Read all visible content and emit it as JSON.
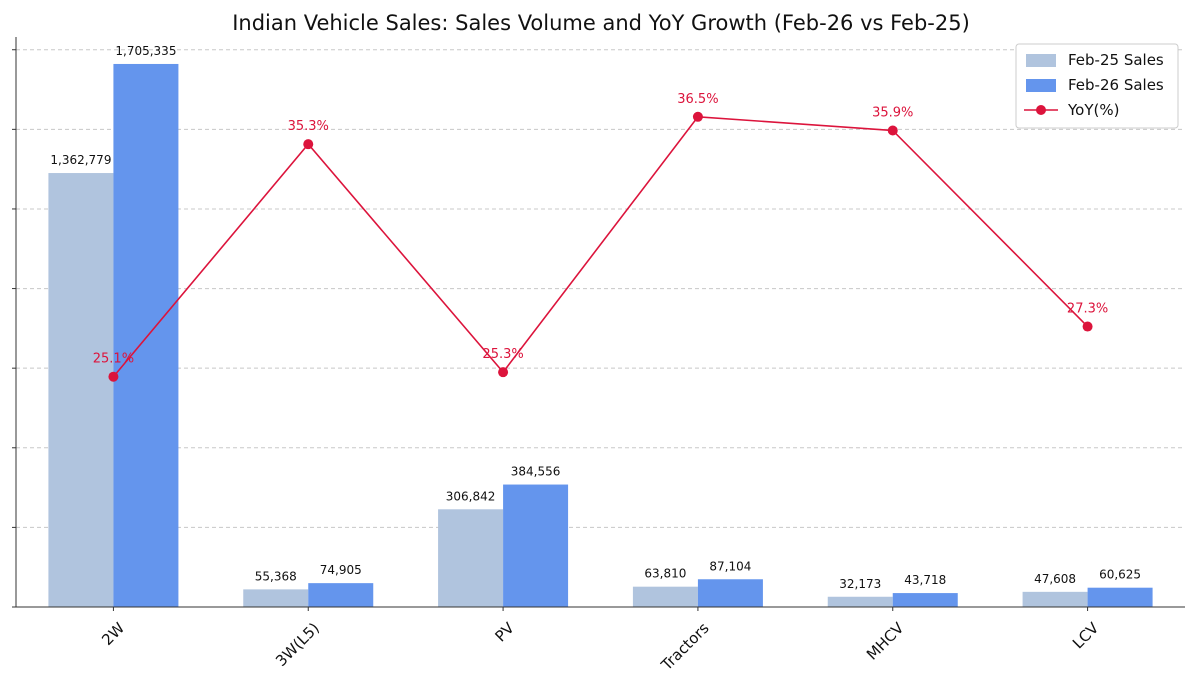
{
  "chart_data": {
    "type": "bar",
    "title": "Indian Vehicle Sales: Sales Volume and YoY Growth (Feb-26 vs Feb-25)",
    "xlabel": "",
    "ylabel": "",
    "categories": [
      "2W",
      "3W(L5)",
      "PV",
      "Tractors",
      "MHCV",
      "LCV"
    ],
    "series": [
      {
        "name": "Feb-25 Sales",
        "type": "bar",
        "color": "#b0c4de",
        "values": [
          1362779,
          55368,
          306842,
          63810,
          32173,
          47608
        ],
        "labels": [
          "1,362,779",
          "55,368",
          "306,842",
          "63,810",
          "32,173",
          "47,608"
        ]
      },
      {
        "name": "Feb-26 Sales",
        "type": "bar",
        "color": "#6495ed",
        "values": [
          1705335,
          74905,
          384556,
          87104,
          43718,
          60625
        ],
        "labels": [
          "1,705,335",
          "74,905",
          "384,556",
          "87,104",
          "43,718",
          "60,625"
        ]
      },
      {
        "name": "YoY(%)",
        "type": "line",
        "color": "#dc143c",
        "values": [
          25.1,
          35.3,
          25.3,
          36.5,
          35.9,
          27.3
        ],
        "labels": [
          "25.1%",
          "35.3%",
          "25.3%",
          "36.5%",
          "35.9%",
          "27.3%"
        ]
      }
    ],
    "ylim": [
      0,
      1790000
    ],
    "y2lim": [
      15,
      40
    ],
    "grid": "y-dashed",
    "legend": "top-right",
    "x_tick_rotation": 45
  }
}
